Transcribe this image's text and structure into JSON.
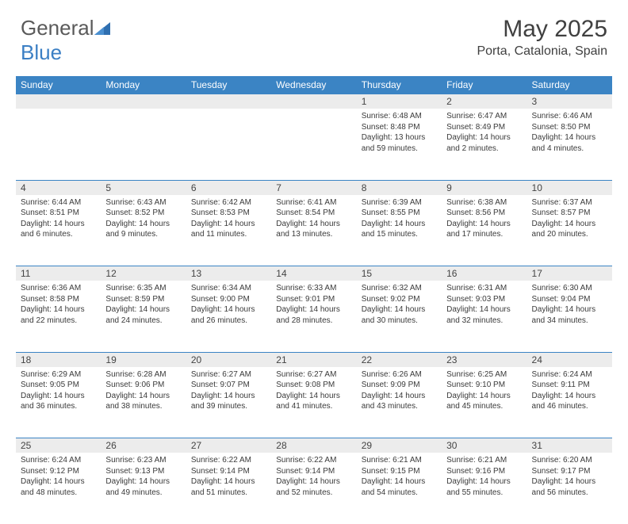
{
  "logo": {
    "text_general": "General",
    "text_blue": "Blue"
  },
  "title": "May 2025",
  "location": "Porta, Catalonia, Spain",
  "colors": {
    "header_bg": "#3b84c4",
    "header_text": "#ffffff",
    "daynum_bg": "#ececec",
    "text": "#3a3a3a",
    "rule": "#3b84c4"
  },
  "days_of_week": [
    "Sunday",
    "Monday",
    "Tuesday",
    "Wednesday",
    "Thursday",
    "Friday",
    "Saturday"
  ],
  "weeks": [
    [
      null,
      null,
      null,
      null,
      {
        "n": "1",
        "sunrise": "6:48 AM",
        "sunset": "8:48 PM",
        "daylight": "13 hours and 59 minutes."
      },
      {
        "n": "2",
        "sunrise": "6:47 AM",
        "sunset": "8:49 PM",
        "daylight": "14 hours and 2 minutes."
      },
      {
        "n": "3",
        "sunrise": "6:46 AM",
        "sunset": "8:50 PM",
        "daylight": "14 hours and 4 minutes."
      }
    ],
    [
      {
        "n": "4",
        "sunrise": "6:44 AM",
        "sunset": "8:51 PM",
        "daylight": "14 hours and 6 minutes."
      },
      {
        "n": "5",
        "sunrise": "6:43 AM",
        "sunset": "8:52 PM",
        "daylight": "14 hours and 9 minutes."
      },
      {
        "n": "6",
        "sunrise": "6:42 AM",
        "sunset": "8:53 PM",
        "daylight": "14 hours and 11 minutes."
      },
      {
        "n": "7",
        "sunrise": "6:41 AM",
        "sunset": "8:54 PM",
        "daylight": "14 hours and 13 minutes."
      },
      {
        "n": "8",
        "sunrise": "6:39 AM",
        "sunset": "8:55 PM",
        "daylight": "14 hours and 15 minutes."
      },
      {
        "n": "9",
        "sunrise": "6:38 AM",
        "sunset": "8:56 PM",
        "daylight": "14 hours and 17 minutes."
      },
      {
        "n": "10",
        "sunrise": "6:37 AM",
        "sunset": "8:57 PM",
        "daylight": "14 hours and 20 minutes."
      }
    ],
    [
      {
        "n": "11",
        "sunrise": "6:36 AM",
        "sunset": "8:58 PM",
        "daylight": "14 hours and 22 minutes."
      },
      {
        "n": "12",
        "sunrise": "6:35 AM",
        "sunset": "8:59 PM",
        "daylight": "14 hours and 24 minutes."
      },
      {
        "n": "13",
        "sunrise": "6:34 AM",
        "sunset": "9:00 PM",
        "daylight": "14 hours and 26 minutes."
      },
      {
        "n": "14",
        "sunrise": "6:33 AM",
        "sunset": "9:01 PM",
        "daylight": "14 hours and 28 minutes."
      },
      {
        "n": "15",
        "sunrise": "6:32 AM",
        "sunset": "9:02 PM",
        "daylight": "14 hours and 30 minutes."
      },
      {
        "n": "16",
        "sunrise": "6:31 AM",
        "sunset": "9:03 PM",
        "daylight": "14 hours and 32 minutes."
      },
      {
        "n": "17",
        "sunrise": "6:30 AM",
        "sunset": "9:04 PM",
        "daylight": "14 hours and 34 minutes."
      }
    ],
    [
      {
        "n": "18",
        "sunrise": "6:29 AM",
        "sunset": "9:05 PM",
        "daylight": "14 hours and 36 minutes."
      },
      {
        "n": "19",
        "sunrise": "6:28 AM",
        "sunset": "9:06 PM",
        "daylight": "14 hours and 38 minutes."
      },
      {
        "n": "20",
        "sunrise": "6:27 AM",
        "sunset": "9:07 PM",
        "daylight": "14 hours and 39 minutes."
      },
      {
        "n": "21",
        "sunrise": "6:27 AM",
        "sunset": "9:08 PM",
        "daylight": "14 hours and 41 minutes."
      },
      {
        "n": "22",
        "sunrise": "6:26 AM",
        "sunset": "9:09 PM",
        "daylight": "14 hours and 43 minutes."
      },
      {
        "n": "23",
        "sunrise": "6:25 AM",
        "sunset": "9:10 PM",
        "daylight": "14 hours and 45 minutes."
      },
      {
        "n": "24",
        "sunrise": "6:24 AM",
        "sunset": "9:11 PM",
        "daylight": "14 hours and 46 minutes."
      }
    ],
    [
      {
        "n": "25",
        "sunrise": "6:24 AM",
        "sunset": "9:12 PM",
        "daylight": "14 hours and 48 minutes."
      },
      {
        "n": "26",
        "sunrise": "6:23 AM",
        "sunset": "9:13 PM",
        "daylight": "14 hours and 49 minutes."
      },
      {
        "n": "27",
        "sunrise": "6:22 AM",
        "sunset": "9:14 PM",
        "daylight": "14 hours and 51 minutes."
      },
      {
        "n": "28",
        "sunrise": "6:22 AM",
        "sunset": "9:14 PM",
        "daylight": "14 hours and 52 minutes."
      },
      {
        "n": "29",
        "sunrise": "6:21 AM",
        "sunset": "9:15 PM",
        "daylight": "14 hours and 54 minutes."
      },
      {
        "n": "30",
        "sunrise": "6:21 AM",
        "sunset": "9:16 PM",
        "daylight": "14 hours and 55 minutes."
      },
      {
        "n": "31",
        "sunrise": "6:20 AM",
        "sunset": "9:17 PM",
        "daylight": "14 hours and 56 minutes."
      }
    ]
  ],
  "labels": {
    "sunrise": "Sunrise:",
    "sunset": "Sunset:",
    "daylight": "Daylight:"
  }
}
